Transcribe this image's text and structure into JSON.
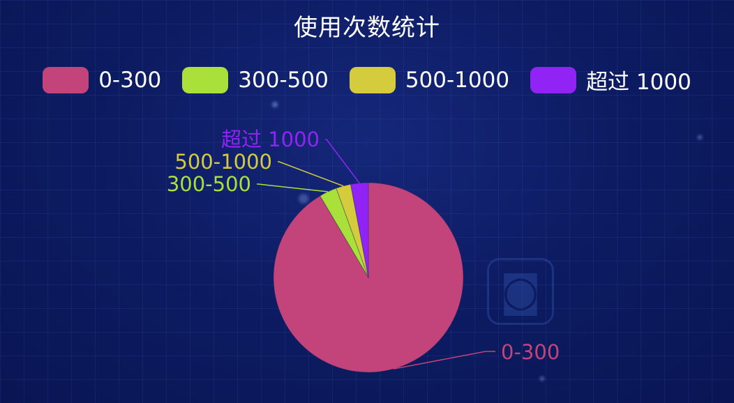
{
  "chart_data": {
    "type": "pie",
    "title": "使用次数统计",
    "categories": [
      "0-300",
      "300-500",
      "500-1000",
      "超过 1000"
    ],
    "values": [
      91.5,
      3,
      2.5,
      3
    ],
    "colors": [
      "#c2447a",
      "#a9e03a",
      "#d4cc3d",
      "#9123f5"
    ],
    "legend_position": "top-center"
  }
}
